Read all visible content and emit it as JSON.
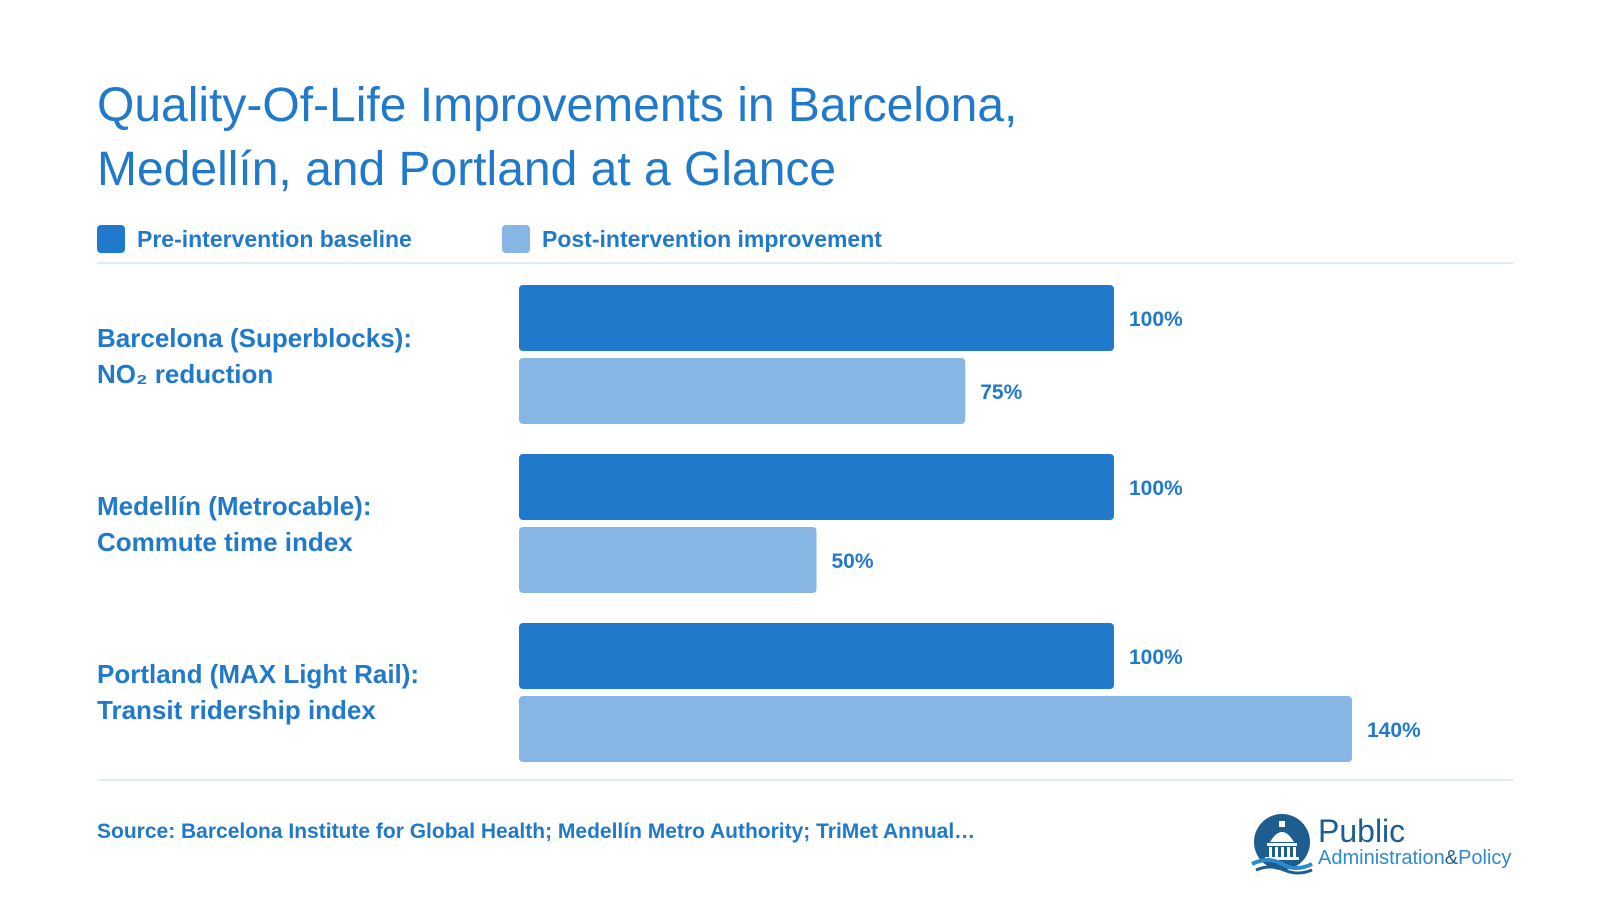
{
  "title": {
    "line1": "Quality-Of-Life Improvements in Barcelona,",
    "line2": "Medellín, and Portland at a Glance"
  },
  "legend": {
    "baseline": "Pre-intervention baseline",
    "post": "Post-intervention improvement"
  },
  "colors": {
    "text": "#2179cc",
    "baseline": "#2179cc",
    "post": "#88b6e4",
    "rule": "#e1ebf4"
  },
  "chart_data": {
    "type": "bar",
    "orientation": "horizontal",
    "categories": [
      [
        "Barcelona (Superblocks):",
        "NO₂ reduction"
      ],
      [
        "Medellín (Metrocable):",
        "Commute time index"
      ],
      [
        "Portland (MAX Light Rail):",
        "Transit ridership index"
      ]
    ],
    "series": [
      {
        "name": "Pre-intervention baseline",
        "values": [
          100,
          100,
          100
        ],
        "labels": [
          "100%",
          "100%",
          "100%"
        ]
      },
      {
        "name": "Post-intervention improvement",
        "values": [
          75,
          50,
          140
        ],
        "labels": [
          "75%",
          "50%",
          "140%"
        ]
      }
    ],
    "value_unit": "%",
    "xlim": [
      0,
      150
    ],
    "grid": false,
    "legend_position": "top-left"
  },
  "footer": {
    "source": "Source: Barcelona Institute for Global Health; Medellín Metro Authority; TriMet Annual…"
  },
  "logo": {
    "title": "Public",
    "subtitle": "Administration",
    "amp": "&",
    "policy": "Policy"
  }
}
